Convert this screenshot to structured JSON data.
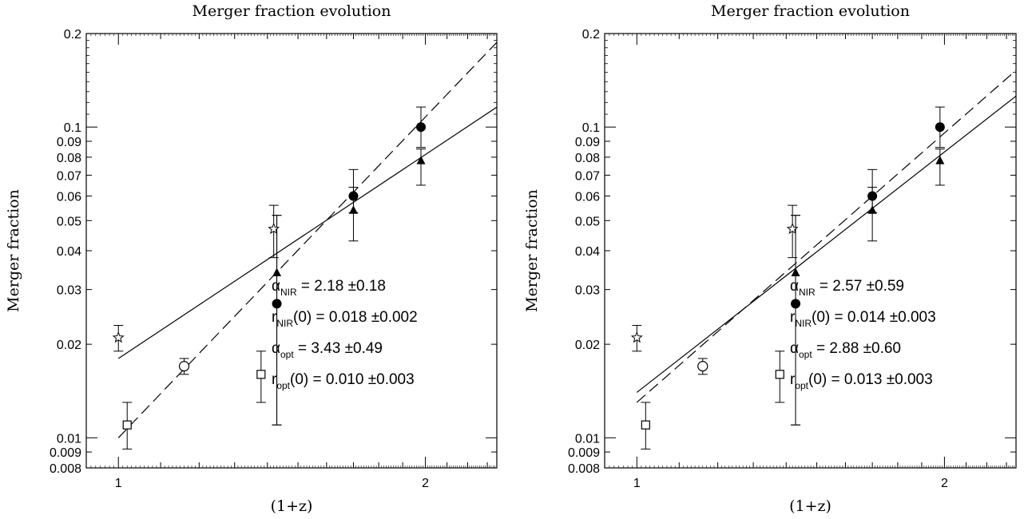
{
  "chart_data": [
    {
      "type": "scatter",
      "title": "Merger fraction evolution",
      "xlabel": "(1+z)",
      "ylabel": "Merger fraction",
      "xscale": "log",
      "yscale": "log",
      "xlim": [
        0.93,
        2.35
      ],
      "ylim": [
        0.008,
        0.2
      ],
      "x_ticks": [
        "1",
        "2"
      ],
      "y_ticks": [
        "0.008",
        "0.009",
        "0.01",
        "0.02",
        "0.03",
        "0.04",
        "0.05",
        "0.06",
        "0.07",
        "0.08",
        "0.09",
        "0.1",
        "0.2"
      ],
      "series": [
        {
          "marker": "filled-circle",
          "points": [
            {
              "x": 1.43,
              "y": 0.027,
              "lo": 0.011,
              "hi": 0.052
            },
            {
              "x": 1.7,
              "y": 0.06,
              "lo": 0.053,
              "hi": 0.073
            },
            {
              "x": 1.98,
              "y": 0.1,
              "lo": 0.086,
              "hi": 0.116
            }
          ]
        },
        {
          "marker": "filled-triangle",
          "points": [
            {
              "x": 1.43,
              "y": 0.034,
              "lo": 0.011,
              "hi": 0.052
            },
            {
              "x": 1.7,
              "y": 0.054,
              "lo": 0.043,
              "hi": 0.064
            },
            {
              "x": 1.98,
              "y": 0.078,
              "lo": 0.065,
              "hi": 0.085
            }
          ]
        },
        {
          "marker": "open-star",
          "points": [
            {
              "x": 1.0,
              "y": 0.021,
              "lo": 0.019,
              "hi": 0.023
            },
            {
              "x": 1.42,
              "y": 0.047,
              "lo": 0.038,
              "hi": 0.056
            }
          ]
        },
        {
          "marker": "open-circle",
          "points": [
            {
              "x": 1.16,
              "y": 0.017,
              "lo": 0.016,
              "hi": 0.018
            }
          ]
        },
        {
          "marker": "open-square",
          "points": [
            {
              "x": 1.02,
              "y": 0.011,
              "lo": 0.0092,
              "hi": 0.013
            },
            {
              "x": 1.38,
              "y": 0.016,
              "lo": 0.013,
              "hi": 0.019
            }
          ]
        }
      ],
      "fits": [
        {
          "style": "solid",
          "r0": 0.018,
          "alpha": 2.18
        },
        {
          "style": "dashed",
          "r0": 0.01,
          "alpha": 3.43
        }
      ],
      "annotations": [
        {
          "sym": "α",
          "sub": "NIR",
          "tail": "",
          "value": "=  2.18  ±0.18"
        },
        {
          "sym": "r",
          "sub": "NIR",
          "tail": "(0)",
          "value": "=  0.018  ±0.002"
        },
        {
          "sym": "α",
          "sub": "opt",
          "tail": "",
          "value": "=  3.43  ±0.49"
        },
        {
          "sym": "r",
          "sub": "opt",
          "tail": "(0)",
          "value": "=  0.010  ±0.003"
        }
      ]
    },
    {
      "type": "scatter",
      "title": "Merger fraction evolution",
      "xlabel": "(1+z)",
      "ylabel": "Merger fraction",
      "xscale": "log",
      "yscale": "log",
      "xlim": [
        0.93,
        2.35
      ],
      "ylim": [
        0.008,
        0.2
      ],
      "x_ticks": [
        "1",
        "2"
      ],
      "y_ticks": [
        "0.008",
        "0.009",
        "0.01",
        "0.02",
        "0.03",
        "0.04",
        "0.05",
        "0.06",
        "0.07",
        "0.08",
        "0.09",
        "0.1",
        "0.2"
      ],
      "series": [
        {
          "marker": "filled-circle",
          "points": [
            {
              "x": 1.43,
              "y": 0.027,
              "lo": 0.011,
              "hi": 0.052
            },
            {
              "x": 1.7,
              "y": 0.06,
              "lo": 0.053,
              "hi": 0.073
            },
            {
              "x": 1.98,
              "y": 0.1,
              "lo": 0.086,
              "hi": 0.116
            }
          ]
        },
        {
          "marker": "filled-triangle",
          "points": [
            {
              "x": 1.43,
              "y": 0.034,
              "lo": 0.011,
              "hi": 0.052
            },
            {
              "x": 1.7,
              "y": 0.054,
              "lo": 0.043,
              "hi": 0.064
            },
            {
              "x": 1.98,
              "y": 0.078,
              "lo": 0.065,
              "hi": 0.085
            }
          ]
        },
        {
          "marker": "open-star",
          "points": [
            {
              "x": 1.0,
              "y": 0.021,
              "lo": 0.019,
              "hi": 0.023
            },
            {
              "x": 1.42,
              "y": 0.047,
              "lo": 0.038,
              "hi": 0.056
            }
          ]
        },
        {
          "marker": "open-circle",
          "points": [
            {
              "x": 1.16,
              "y": 0.017,
              "lo": 0.016,
              "hi": 0.018
            }
          ]
        },
        {
          "marker": "open-square",
          "points": [
            {
              "x": 1.02,
              "y": 0.011,
              "lo": 0.0092,
              "hi": 0.013
            },
            {
              "x": 1.38,
              "y": 0.016,
              "lo": 0.013,
              "hi": 0.019
            }
          ]
        }
      ],
      "fits": [
        {
          "style": "solid",
          "r0": 0.014,
          "alpha": 2.57
        },
        {
          "style": "dashed",
          "r0": 0.013,
          "alpha": 2.88
        }
      ],
      "annotations": [
        {
          "sym": "α",
          "sub": "NIR",
          "tail": "",
          "value": "=  2.57  ±0.59"
        },
        {
          "sym": "r",
          "sub": "NIR",
          "tail": "(0)",
          "value": "=  0.014  ±0.003"
        },
        {
          "sym": "α",
          "sub": "opt",
          "tail": "",
          "value": "=  2.88  ±0.60"
        },
        {
          "sym": "r",
          "sub": "opt",
          "tail": "(0)",
          "value": "=  0.013  ±0.003"
        }
      ]
    }
  ]
}
